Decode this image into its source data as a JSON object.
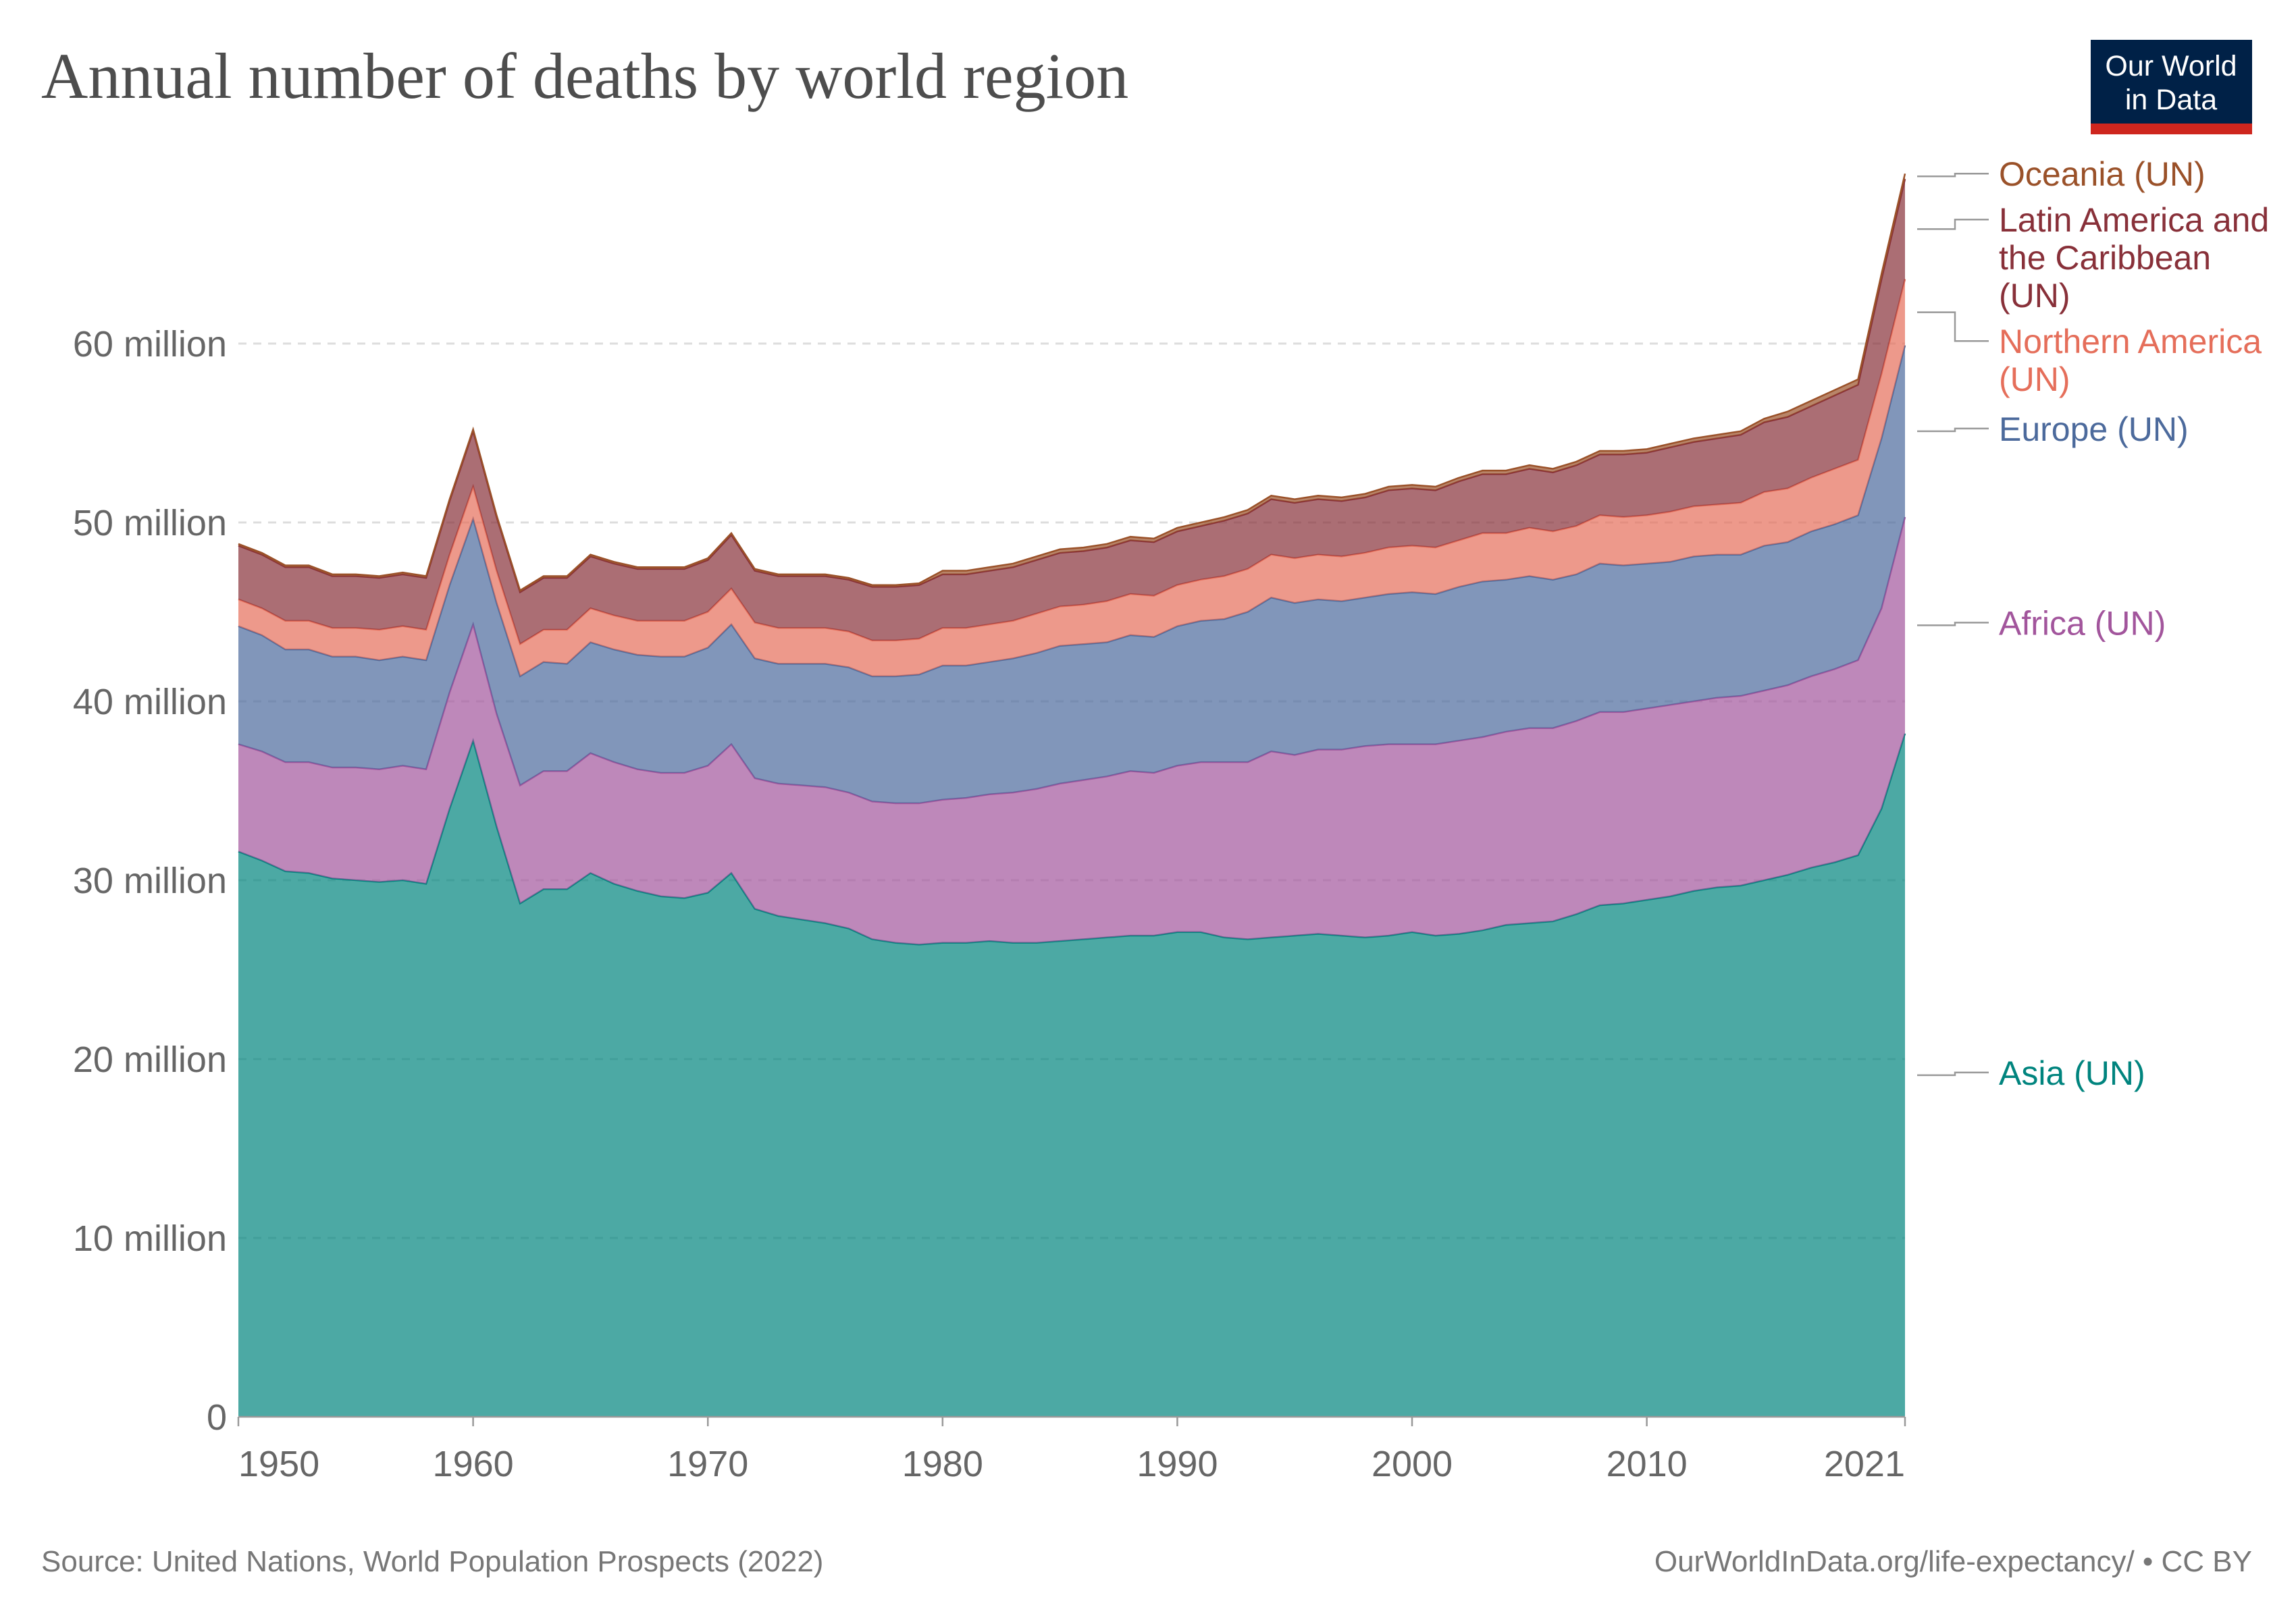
{
  "chart_data": {
    "type": "stacked-area",
    "title": "Annual number of deaths by world region",
    "source": "Source: United Nations, World Population Prospects (2022)",
    "url": "OurWorldInData.org/life-expectancy/ • CC BY",
    "logo": [
      "Our World",
      "in Data"
    ],
    "x": [
      1950,
      1951,
      1952,
      1953,
      1954,
      1955,
      1956,
      1957,
      1958,
      1959,
      1960,
      1961,
      1962,
      1963,
      1964,
      1965,
      1966,
      1967,
      1968,
      1969,
      1970,
      1971,
      1972,
      1973,
      1974,
      1975,
      1976,
      1977,
      1978,
      1979,
      1980,
      1981,
      1982,
      1983,
      1984,
      1985,
      1986,
      1987,
      1988,
      1989,
      1990,
      1991,
      1992,
      1993,
      1994,
      1995,
      1996,
      1997,
      1998,
      1999,
      2000,
      2001,
      2002,
      2003,
      2004,
      2005,
      2006,
      2007,
      2008,
      2009,
      2010,
      2011,
      2012,
      2013,
      2014,
      2015,
      2016,
      2017,
      2018,
      2019,
      2020,
      2021
    ],
    "xlim": [
      1950,
      2021
    ],
    "xticks": [
      1950,
      1960,
      1970,
      1980,
      1990,
      2000,
      2010,
      2021
    ],
    "ylim": [
      0,
      70
    ],
    "yticks": [
      0,
      {
        "value": 10,
        "label": "10 million"
      },
      {
        "value": 20,
        "label": "20 million"
      },
      {
        "value": 30,
        "label": "30 million"
      },
      {
        "value": 40,
        "label": "40 million"
      },
      {
        "value": 50,
        "label": "50 million"
      },
      {
        "value": 60,
        "label": "60 million"
      }
    ],
    "grid": true,
    "series": [
      {
        "name": "Asia (UN)",
        "color": "#00847e",
        "values": [
          31.6,
          31.1,
          30.5,
          30.4,
          30.1,
          30.0,
          29.9,
          30.0,
          29.8,
          34.0,
          37.8,
          33.0,
          28.7,
          29.5,
          29.5,
          30.4,
          29.8,
          29.4,
          29.1,
          29.0,
          29.3,
          30.4,
          28.4,
          28.0,
          27.8,
          27.6,
          27.3,
          26.7,
          26.5,
          26.4,
          26.5,
          26.5,
          26.6,
          26.5,
          26.5,
          26.6,
          26.7,
          26.8,
          26.9,
          26.9,
          27.1,
          27.1,
          26.8,
          26.7,
          26.8,
          26.9,
          27.0,
          26.9,
          26.8,
          26.9,
          27.1,
          26.9,
          27.0,
          27.2,
          27.5,
          27.6,
          27.7,
          28.1,
          28.6,
          28.7,
          28.9,
          29.1,
          29.4,
          29.6,
          29.7,
          30.0,
          30.3,
          30.7,
          31.0,
          31.4,
          34.0,
          38.2
        ]
      },
      {
        "name": "Africa (UN)",
        "color": "#a2559c",
        "values": [
          6.0,
          6.1,
          6.1,
          6.2,
          6.2,
          6.3,
          6.3,
          6.4,
          6.4,
          6.5,
          6.5,
          6.3,
          6.6,
          6.6,
          6.6,
          6.7,
          6.8,
          6.8,
          6.9,
          7.0,
          7.1,
          7.2,
          7.3,
          7.4,
          7.5,
          7.6,
          7.6,
          7.7,
          7.8,
          7.9,
          8.0,
          8.1,
          8.2,
          8.4,
          8.6,
          8.8,
          8.9,
          9.0,
          9.2,
          9.1,
          9.3,
          9.5,
          9.8,
          9.9,
          10.4,
          10.1,
          10.3,
          10.4,
          10.7,
          10.7,
          10.5,
          10.7,
          10.8,
          10.8,
          10.8,
          10.9,
          10.8,
          10.8,
          10.8,
          10.7,
          10.7,
          10.7,
          10.6,
          10.6,
          10.6,
          10.6,
          10.6,
          10.7,
          10.8,
          10.9,
          11.2,
          12.1
        ]
      },
      {
        "name": "Europe (UN)",
        "color": "#4c6a9c",
        "values": [
          6.6,
          6.5,
          6.3,
          6.3,
          6.2,
          6.2,
          6.1,
          6.1,
          6.1,
          6.0,
          5.9,
          6.2,
          6.1,
          6.1,
          6.0,
          6.2,
          6.3,
          6.4,
          6.5,
          6.5,
          6.6,
          6.7,
          6.7,
          6.7,
          6.8,
          6.9,
          7.0,
          7.0,
          7.1,
          7.2,
          7.5,
          7.4,
          7.4,
          7.5,
          7.6,
          7.7,
          7.6,
          7.5,
          7.6,
          7.6,
          7.8,
          7.9,
          8.0,
          8.4,
          8.6,
          8.5,
          8.4,
          8.3,
          8.3,
          8.4,
          8.5,
          8.4,
          8.6,
          8.7,
          8.5,
          8.5,
          8.3,
          8.2,
          8.3,
          8.2,
          8.1,
          8.0,
          8.1,
          8.0,
          7.9,
          8.1,
          8.0,
          8.1,
          8.1,
          8.1,
          9.5,
          9.6
        ]
      },
      {
        "name": "Northern America (UN)",
        "color": "#e56e5a",
        "values": [
          1.5,
          1.5,
          1.6,
          1.6,
          1.6,
          1.6,
          1.7,
          1.7,
          1.7,
          1.7,
          1.8,
          1.8,
          1.8,
          1.8,
          1.9,
          1.9,
          1.9,
          1.9,
          2.0,
          2.0,
          2.0,
          2.0,
          2.0,
          2.0,
          2.0,
          2.0,
          2.0,
          2.0,
          2.0,
          2.0,
          2.1,
          2.1,
          2.1,
          2.1,
          2.2,
          2.2,
          2.2,
          2.3,
          2.3,
          2.3,
          2.3,
          2.3,
          2.4,
          2.4,
          2.4,
          2.5,
          2.5,
          2.5,
          2.5,
          2.6,
          2.6,
          2.6,
          2.6,
          2.7,
          2.6,
          2.7,
          2.7,
          2.7,
          2.7,
          2.7,
          2.7,
          2.8,
          2.8,
          2.8,
          2.9,
          3.0,
          3.0,
          3.0,
          3.1,
          3.1,
          3.6,
          3.7
        ]
      },
      {
        "name": "Latin America and the Caribbean (UN)",
        "color": "#883039",
        "values": [
          3.0,
          3.0,
          3.0,
          3.0,
          2.9,
          2.9,
          2.9,
          2.9,
          2.9,
          3.0,
          3.1,
          3.0,
          2.9,
          2.9,
          2.9,
          2.9,
          2.9,
          2.9,
          2.9,
          2.9,
          2.9,
          3.0,
          2.9,
          2.9,
          2.9,
          2.9,
          2.9,
          3.0,
          3.0,
          3.0,
          3.0,
          3.0,
          3.0,
          3.0,
          3.0,
          3.0,
          3.0,
          3.0,
          3.0,
          3.0,
          3.0,
          3.0,
          3.1,
          3.1,
          3.1,
          3.1,
          3.1,
          3.1,
          3.1,
          3.2,
          3.2,
          3.2,
          3.3,
          3.3,
          3.3,
          3.3,
          3.3,
          3.4,
          3.4,
          3.5,
          3.5,
          3.6,
          3.6,
          3.7,
          3.8,
          3.9,
          4.0,
          4.0,
          4.1,
          4.2,
          5.3,
          5.6
        ]
      },
      {
        "name": "Oceania (UN)",
        "color": "#9a5129",
        "values": [
          0.1,
          0.1,
          0.1,
          0.1,
          0.1,
          0.1,
          0.1,
          0.1,
          0.1,
          0.1,
          0.1,
          0.1,
          0.1,
          0.1,
          0.1,
          0.1,
          0.1,
          0.1,
          0.1,
          0.1,
          0.1,
          0.1,
          0.1,
          0.1,
          0.1,
          0.1,
          0.1,
          0.1,
          0.1,
          0.1,
          0.2,
          0.2,
          0.2,
          0.2,
          0.2,
          0.2,
          0.2,
          0.2,
          0.2,
          0.2,
          0.2,
          0.2,
          0.2,
          0.2,
          0.2,
          0.2,
          0.2,
          0.2,
          0.2,
          0.2,
          0.2,
          0.2,
          0.2,
          0.2,
          0.2,
          0.2,
          0.2,
          0.2,
          0.2,
          0.2,
          0.2,
          0.2,
          0.2,
          0.2,
          0.2,
          0.2,
          0.3,
          0.3,
          0.3,
          0.3,
          0.3,
          0.3
        ]
      }
    ]
  }
}
